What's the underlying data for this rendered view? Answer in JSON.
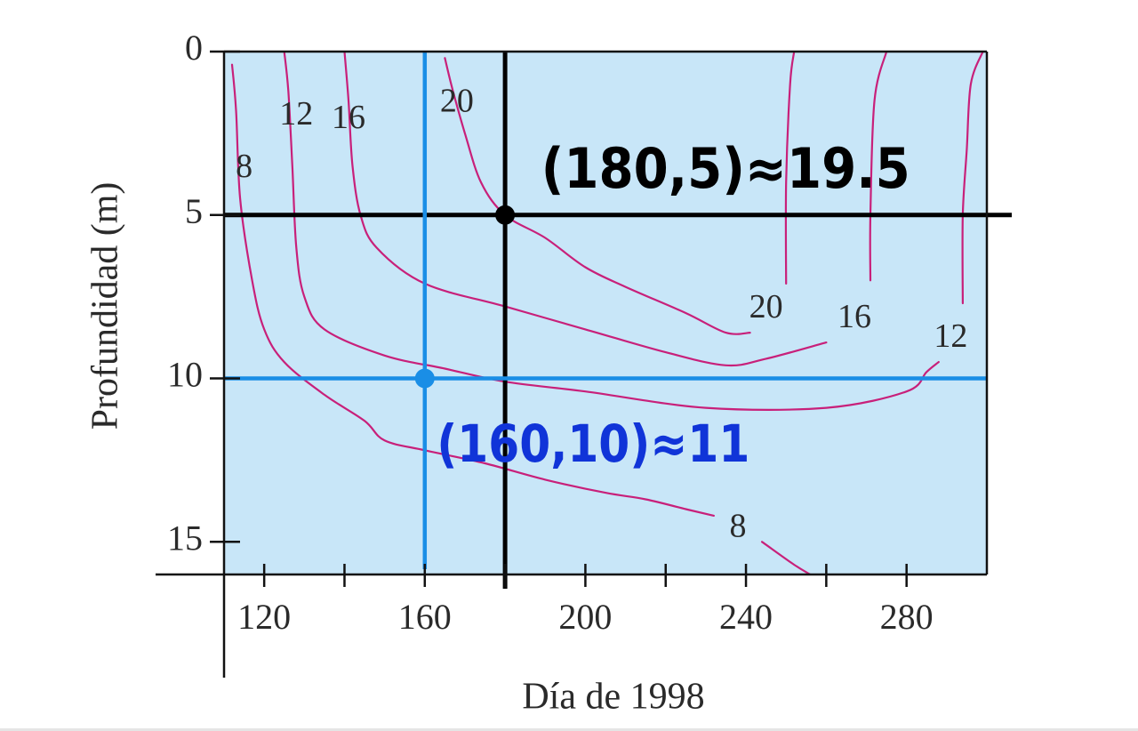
{
  "chart_data": {
    "type": "contour",
    "title": "",
    "xlabel": "Día de 1998",
    "ylabel": "Profundidad (m)",
    "xlim": [
      110,
      300
    ],
    "ylim": [
      16,
      0
    ],
    "y_inverted": true,
    "x_ticks_major": [
      120,
      160,
      200,
      240,
      280
    ],
    "x_ticks_minor": [
      140,
      180,
      220,
      260
    ],
    "y_ticks": [
      0,
      5,
      10,
      15
    ],
    "grid": false,
    "colors": {
      "plot_bg": "#c8e6f8",
      "contour": "#c8207a",
      "axis": "#111111",
      "marker_black": "#000000",
      "marker_blue": "#1a8ee6",
      "text_blue": "#1034d8"
    },
    "contours": [
      {
        "level": 8,
        "label": "8",
        "points": [
          [
            112,
            0.4
          ],
          [
            113,
            1.8
          ],
          [
            114,
            4.5
          ],
          [
            117,
            7
          ],
          [
            120,
            8.5
          ],
          [
            125,
            9.5
          ],
          [
            135,
            10.5
          ],
          [
            145,
            11.3
          ],
          [
            150,
            11.9
          ],
          [
            160,
            12.2
          ],
          [
            175,
            12.6
          ],
          [
            190,
            13.1
          ],
          [
            205,
            13.5
          ],
          [
            215,
            13.7
          ],
          [
            225,
            14.0
          ],
          [
            232,
            14.2
          ]
        ]
      },
      {
        "level": 8,
        "label": "",
        "points": [
          [
            244,
            15.0
          ],
          [
            252,
            15.7
          ],
          [
            256,
            16.0
          ]
        ]
      },
      {
        "level": 12,
        "label": "12",
        "points": [
          [
            125,
            0
          ],
          [
            126,
            1.2
          ],
          [
            127,
            3.5
          ],
          [
            128,
            6
          ],
          [
            130,
            7.5
          ],
          [
            135,
            8.5
          ],
          [
            150,
            9.3
          ],
          [
            165,
            9.7
          ],
          [
            180,
            10.1
          ],
          [
            200,
            10.4
          ],
          [
            230,
            10.9
          ],
          [
            260,
            10.9
          ],
          [
            280,
            10.4
          ],
          [
            285,
            9.8
          ],
          [
            288,
            9.5
          ]
        ]
      },
      {
        "level": 12,
        "label": "",
        "points": [
          [
            294,
            7.7
          ],
          [
            294,
            5
          ],
          [
            295,
            3
          ],
          [
            296,
            1
          ],
          [
            299,
            0
          ]
        ]
      },
      {
        "level": 16,
        "label": "16",
        "points": [
          [
            140,
            0
          ],
          [
            141,
            1.5
          ],
          [
            142,
            3.5
          ],
          [
            144,
            5
          ],
          [
            148,
            6
          ],
          [
            160,
            7.1
          ],
          [
            180,
            7.8
          ],
          [
            200,
            8.5
          ],
          [
            220,
            9.2
          ],
          [
            235,
            9.6
          ],
          [
            245,
            9.4
          ],
          [
            260,
            8.9
          ]
        ]
      },
      {
        "level": 16,
        "label": "",
        "points": [
          [
            271,
            7.0
          ],
          [
            271,
            5
          ],
          [
            272,
            1.5
          ],
          [
            275,
            0
          ]
        ]
      },
      {
        "level": 20,
        "label": "20",
        "points": [
          [
            165,
            0.2
          ],
          [
            167,
            1.2
          ],
          [
            170,
            2.5
          ],
          [
            174,
            4
          ],
          [
            180,
            5
          ],
          [
            190,
            5.7
          ],
          [
            200,
            6.6
          ],
          [
            210,
            7.2
          ],
          [
            225,
            8.0
          ],
          [
            235,
            8.6
          ],
          [
            241,
            8.6
          ]
        ]
      },
      {
        "level": 20,
        "label": "",
        "points": [
          [
            250,
            7.1
          ],
          [
            250,
            4
          ],
          [
            251,
            1
          ],
          [
            252,
            0
          ]
        ]
      }
    ],
    "contour_labels": [
      {
        "text": "8",
        "x": 115,
        "y": 3.6
      },
      {
        "text": "12",
        "x": 128,
        "y": 2.0
      },
      {
        "text": "16",
        "x": 141,
        "y": 2.1
      },
      {
        "text": "20",
        "x": 168,
        "y": 1.6
      },
      {
        "text": "20",
        "x": 245,
        "y": 7.9
      },
      {
        "text": "16",
        "x": 267,
        "y": 8.2
      },
      {
        "text": "12",
        "x": 291,
        "y": 8.8
      },
      {
        "text": "8",
        "x": 238,
        "y": 14.6
      }
    ],
    "annotations": [
      {
        "text": "(180,5)≈19.5",
        "point": [
          180,
          5
        ],
        "color": "#000000",
        "line_color": "#000000",
        "text_at": [
          189,
          3.7
        ]
      },
      {
        "text": "(160,10)≈11",
        "point": [
          160,
          10
        ],
        "color": "#1034d8",
        "line_color": "#1a8ee6",
        "text_at": [
          163,
          12.1
        ]
      }
    ]
  }
}
